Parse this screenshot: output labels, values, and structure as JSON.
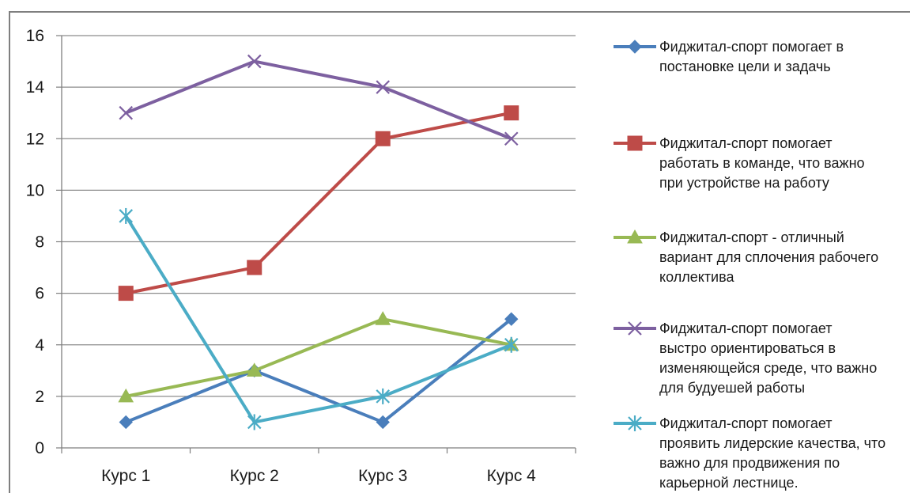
{
  "chart_data": {
    "type": "line",
    "categories": [
      "Курс 1",
      "Курс 2",
      "Курс 3",
      "Курс 4"
    ],
    "ylim": [
      0,
      16
    ],
    "yticks": [
      0,
      2,
      4,
      6,
      8,
      10,
      12,
      14,
      16
    ],
    "grid": true,
    "legend_position": "right",
    "series": [
      {
        "name": "Фиджитал-спорт помогает в постановке цели и задачь",
        "legend_lines": [
          "Фиджитал-спорт помогает в",
          "постановке цели и задачь"
        ],
        "values": [
          1,
          3,
          1,
          5
        ],
        "color": "#4a7ebb",
        "marker": "diamond"
      },
      {
        "name": "Фиджитал-спорт помогает работать в команде, что важно при устройстве на работу",
        "legend_lines": [
          "Фиджитал-спорт помогает",
          "работать в команде, что важно",
          "при устройстве на работу"
        ],
        "values": [
          6,
          7,
          12,
          13
        ],
        "color": "#be4b48",
        "marker": "square"
      },
      {
        "name": "Фиджитал-спорт - отличный вариант для сплочения рабочего коллектива",
        "legend_lines": [
          "Фиджитал-спорт - отличный",
          "вариант для сплочения рабочего",
          "коллектива"
        ],
        "values": [
          2,
          3,
          5,
          4
        ],
        "color": "#98b954",
        "marker": "triangle"
      },
      {
        "name": "Фиджитал-спорт помогает быстро ориентироваться в изменяющейся среде, что важно для будуешей работы",
        "legend_lines": [
          "Фиджитал-спорт помогает",
          "выстро ориентироваться в",
          "изменяющейся среде, что важно",
          "для будуешей работы"
        ],
        "values": [
          13,
          15,
          14,
          12
        ],
        "color": "#7d60a0",
        "marker": "x"
      },
      {
        "name": "Фиджитал-спорт помогает проявить лидерские качества, что важно для продвижения по карьерной лестнице.",
        "legend_lines": [
          "Фиджитал-спорт помогает",
          "проявить лидерские качества, что",
          "важно для продвижения по",
          "карьерной лестнице."
        ],
        "values": [
          9,
          1,
          2,
          4
        ],
        "color": "#4bacc6",
        "marker": "star"
      }
    ]
  }
}
